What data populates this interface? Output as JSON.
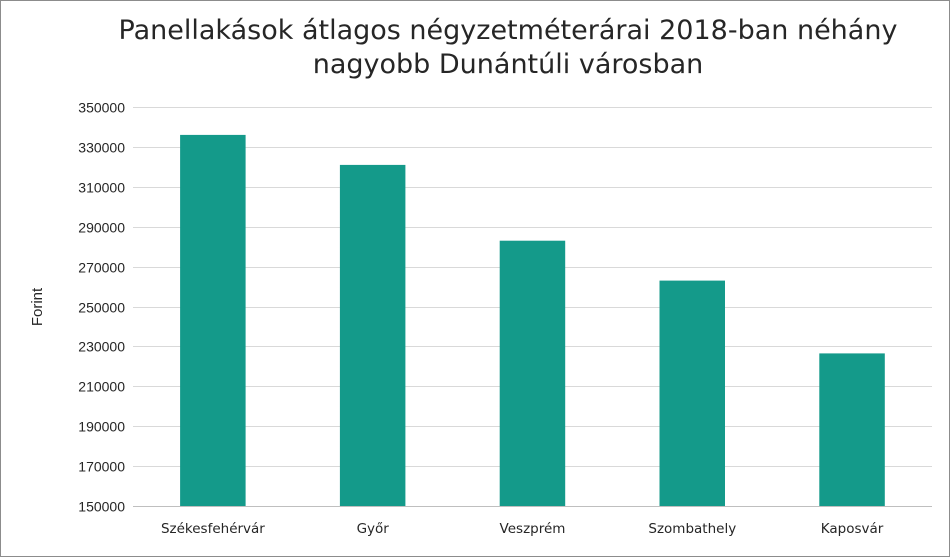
{
  "chart_data": {
    "type": "bar",
    "title_line1": "Panellakások átlagos négyzetméterárai 2018-ban néhány",
    "title_line2": "nagyobb Dunántúli városban",
    "xlabel": "",
    "ylabel": "Forint",
    "categories": [
      "Székesfehérvár",
      "Győr",
      "Veszprém",
      "Szombathely",
      "Kaposvár"
    ],
    "values": [
      336000,
      321000,
      283000,
      263000,
      226500
    ],
    "ylim": [
      150000,
      350000
    ],
    "yticks": [
      150000,
      170000,
      190000,
      210000,
      230000,
      250000,
      270000,
      290000,
      310000,
      330000,
      350000
    ],
    "grid": true,
    "legend": "none",
    "bar_color": "#149a8a",
    "grid_color": "#d9d9d9",
    "axis_color": "#bfbfbf"
  }
}
